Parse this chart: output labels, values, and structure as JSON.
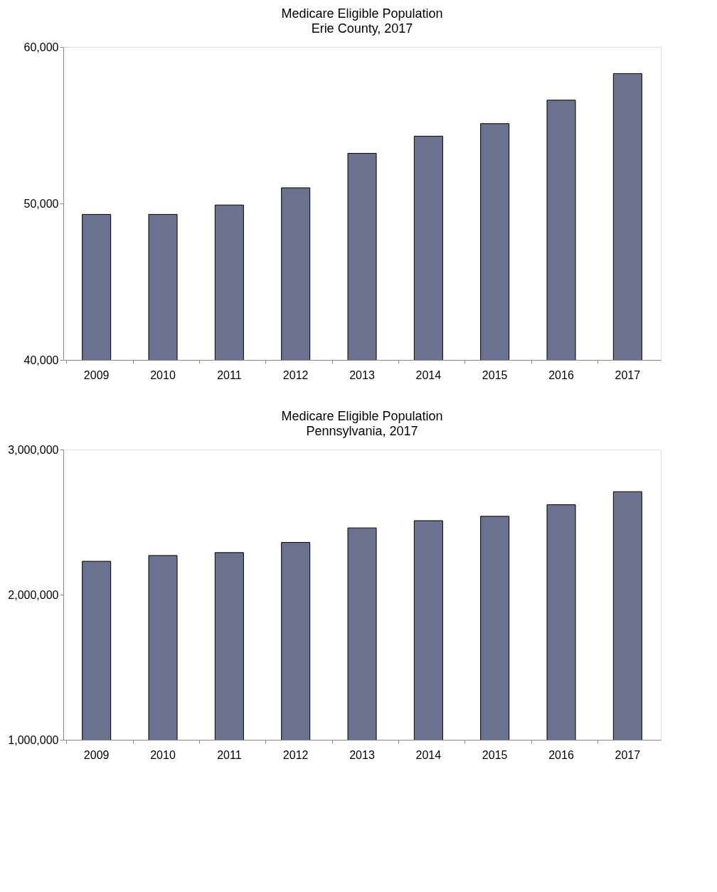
{
  "chart_data": [
    {
      "type": "bar",
      "title": "Medicare Eligible Population",
      "subtitle": "Erie County, 2017",
      "categories": [
        "2009",
        "2010",
        "2011",
        "2012",
        "2013",
        "2014",
        "2015",
        "2016",
        "2017"
      ],
      "values": [
        49300,
        49300,
        49900,
        51000,
        53200,
        54300,
        55100,
        56600,
        58300
      ],
      "color": "#6b7290",
      "ylim": [
        40000,
        60000
      ],
      "yticks": [
        {
          "value": 40000,
          "label": "40,000"
        },
        {
          "value": 50000,
          "label": "50,000"
        },
        {
          "value": 60000,
          "label": "60,000"
        }
      ],
      "grid": false
    },
    {
      "type": "bar",
      "title": "Medicare Eligible Population",
      "subtitle": "Pennsylvania, 2017",
      "categories": [
        "2009",
        "2010",
        "2011",
        "2012",
        "2013",
        "2014",
        "2015",
        "2016",
        "2017"
      ],
      "values": [
        2230000,
        2270000,
        2290000,
        2360000,
        2460000,
        2510000,
        2540000,
        2620000,
        2710000
      ],
      "color": "#6b7290",
      "ylim": [
        1000000,
        3000000
      ],
      "yticks": [
        {
          "value": 1000000,
          "label": "1,000,000"
        },
        {
          "value": 2000000,
          "label": "2,000,000"
        },
        {
          "value": 3000000,
          "label": "3,000,000"
        }
      ],
      "grid": false
    }
  ]
}
